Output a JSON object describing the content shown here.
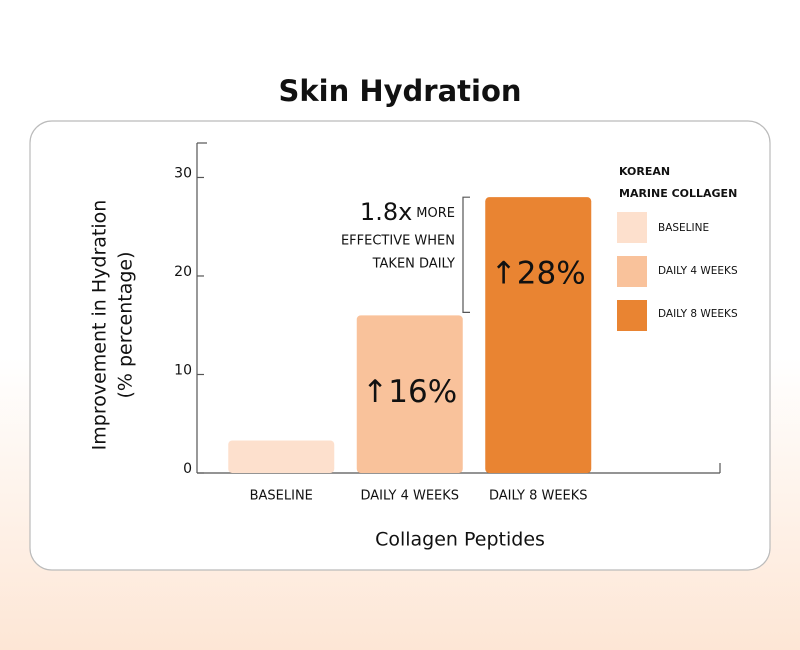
{
  "chart_data": {
    "type": "bar",
    "title": "Skin Hydration",
    "y_label": [
      "Improvement in Hydration",
      "(% percentage)"
    ],
    "x_label": "Collagen Peptides",
    "categories": [
      "BASELINE",
      "DAILY 4 WEEKS",
      "DAILY 8 WEEKS"
    ],
    "values": [
      3.3,
      16,
      28
    ],
    "value_labels": [
      null,
      "↑16%",
      "↑28%"
    ],
    "colors": [
      "#fde0cd",
      "#f9c29b",
      "#e98432"
    ],
    "ylim": [
      0,
      33.5
    ],
    "yticks": [
      0,
      10,
      20,
      30
    ],
    "legend_title": [
      "KOREAN",
      "MARINE COLLAGEN"
    ],
    "annotation": [
      "1.8x",
      "MORE",
      "EFFECTIVE WHEN",
      "TAKEN DAILY"
    ]
  }
}
